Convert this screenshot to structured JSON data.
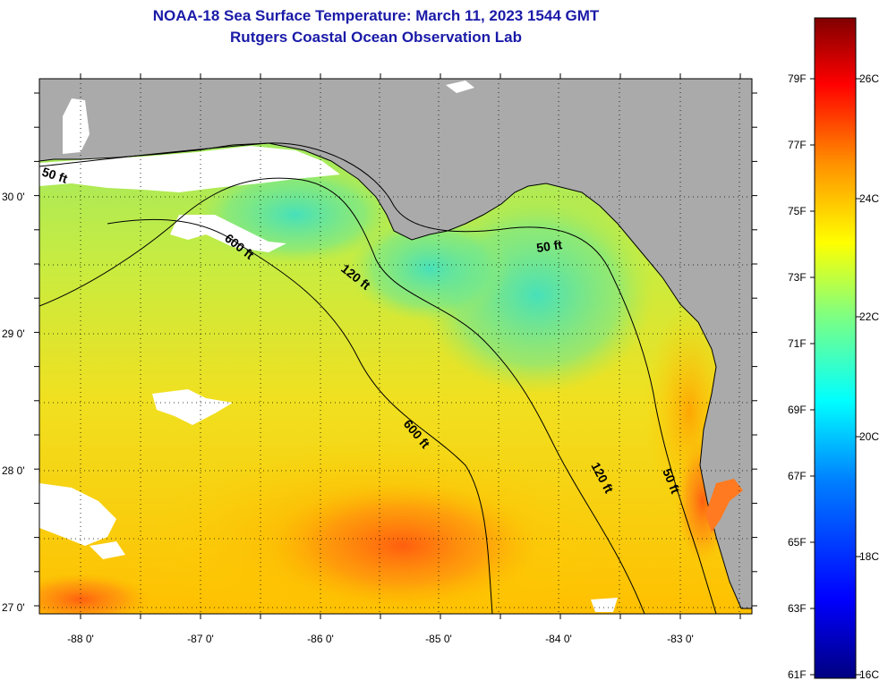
{
  "header": {
    "title_line1": "NOAA-18 Sea Surface Temperature:  March 11, 2023 1544 GMT",
    "title_line2": "Rutgers Coastal Ocean Observation Lab"
  },
  "map": {
    "lat_labels": [
      "30 0'",
      "29 0'",
      "28 0'",
      "27 0'"
    ],
    "lon_labels": [
      "-88 0'",
      "-87 0'",
      "-86 0'",
      "-85 0'",
      "-84 0'",
      "-83 0'"
    ],
    "contour_labels": [
      "50 ft",
      "600 ft",
      "120 ft",
      "50 ft",
      "600 ft",
      "120 ft",
      "50 ft"
    ],
    "colors": {
      "land": "#aaaaaa",
      "cloud": "#ffffff",
      "sst_cool": "#44e0b0",
      "sst_mid": "#c6ea3a",
      "sst_warm": "#ffb000",
      "sst_hot": "#ff5a10"
    }
  },
  "colorbar": {
    "fahrenheit_labels": [
      "79F",
      "77F",
      "75F",
      "73F",
      "71F",
      "69F",
      "67F",
      "65F",
      "63F",
      "61F"
    ],
    "celsius_labels": [
      "26C",
      "24C",
      "22C",
      "20C",
      "18C",
      "16C"
    ]
  }
}
